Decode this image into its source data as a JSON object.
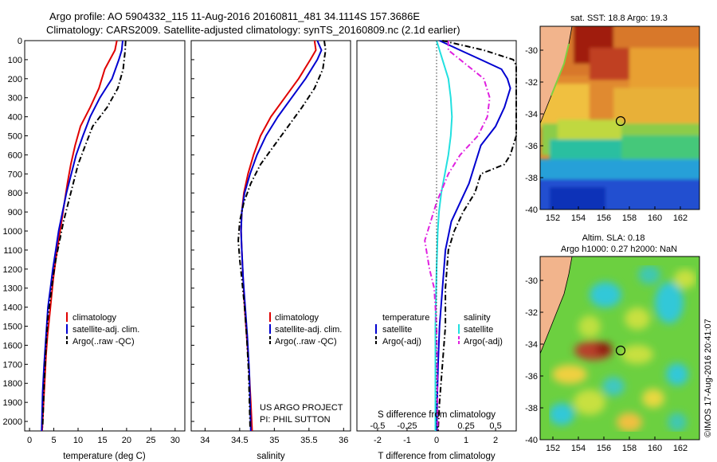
{
  "title": {
    "line1": "Argo profile: AO 5904332_115 11-Aug-2016 20160811_481 34.1114S 157.3686E",
    "line2": "Climatology: CARS2009. Satellite-adjusted climatology: synTS_20160809.nc (2.1d earlier)"
  },
  "colors": {
    "climatology": "#e00000",
    "satellite_temperature": "#0000d0",
    "argo": "#000000",
    "satellite_salinity": "#22e0e0",
    "argo_salinity_diff": "#e020e0",
    "land": "#f2b48c"
  },
  "panels": {
    "temperature": {
      "xlabel": "temperature (deg C)",
      "legend": [
        "climatology",
        "satellite-adj. clim.",
        "Argo(..raw -QC)"
      ]
    },
    "salinity": {
      "xlabel": "salinity",
      "legend": [
        "climatology",
        "satellite-adj. clim.",
        "Argo(..raw -QC)"
      ],
      "project": "US ARGO PROJECT",
      "pi": "PI: PHIL SUTTON"
    },
    "difference": {
      "xlabel_t": "T difference from climatology",
      "xlabel_s": "S difference from climatology",
      "legend_temperature_title": "temperature",
      "legend_salinity_title": "salinity",
      "legend_satellite": "satellite",
      "legend_argo": "Argo(-adj)"
    },
    "sst_map": {
      "title": "sat. SST: 18.8  Argo: 19.3"
    },
    "sla_map": {
      "title1": "Altim. SLA: 0.18",
      "title2": "Argo h1000: 0.27  h2000: NaN"
    },
    "stamp": "©IMOS 17-Aug-2016 20:41:07"
  },
  "chart_data": [
    {
      "type": "line",
      "name": "temperature",
      "xlabel": "temperature (deg C)",
      "xlim": [
        -1,
        32
      ],
      "ylim": [
        2050,
        0
      ],
      "xticks": [
        0,
        5,
        10,
        15,
        20,
        25,
        30
      ],
      "yticks": [
        0,
        100,
        200,
        300,
        400,
        500,
        600,
        700,
        800,
        900,
        1000,
        1100,
        1200,
        1300,
        1400,
        1500,
        1600,
        1700,
        1800,
        1900,
        2000
      ],
      "series": [
        {
          "name": "climatology",
          "color": "#e00000",
          "style": "solid",
          "x": [
            18.0,
            17.6,
            15.5,
            14.3,
            12.5,
            10.5,
            9.4,
            8.5,
            7.8,
            7.2,
            6.6,
            6.0,
            5.4,
            4.9,
            4.5,
            4.1,
            3.7,
            3.4,
            3.1,
            2.8,
            2.6
          ],
          "y": [
            0,
            50,
            150,
            250,
            350,
            450,
            550,
            650,
            750,
            850,
            950,
            1050,
            1150,
            1250,
            1350,
            1450,
            1550,
            1650,
            1800,
            1950,
            2050
          ]
        },
        {
          "name": "satellite-adj. clim.",
          "color": "#0000d0",
          "style": "solid",
          "x": [
            19.2,
            19.0,
            18.4,
            17.0,
            14.5,
            12.5,
            11.0,
            9.6,
            8.6,
            7.6,
            6.8,
            6.0,
            5.4,
            4.8,
            4.3,
            3.8,
            3.4,
            3.0,
            2.7,
            2.5
          ],
          "y": [
            0,
            50,
            100,
            200,
            300,
            400,
            500,
            600,
            700,
            800,
            900,
            1000,
            1100,
            1200,
            1300,
            1400,
            1550,
            1700,
            1850,
            2050
          ]
        },
        {
          "name": "Argo(..raw -QC)",
          "color": "#000000",
          "style": "dashed",
          "x": [
            19.8,
            19.7,
            19.3,
            18.2,
            16.0,
            13.0,
            11.5,
            10.0,
            9.0,
            8.0,
            7.0,
            6.2,
            5.4,
            4.8,
            4.3,
            3.8,
            3.4,
            3.0,
            2.7
          ],
          "y": [
            0,
            50,
            150,
            250,
            350,
            450,
            550,
            650,
            750,
            850,
            950,
            1050,
            1150,
            1250,
            1350,
            1450,
            1600,
            1800,
            2030
          ]
        }
      ]
    },
    {
      "type": "line",
      "name": "salinity",
      "xlabel": "salinity",
      "xlim": [
        33.8,
        36.1
      ],
      "ylim": [
        2050,
        0
      ],
      "xticks": [
        34,
        34.5,
        35,
        35.5,
        36
      ],
      "yticks": [
        0,
        100,
        200,
        300,
        400,
        500,
        600,
        700,
        800,
        900,
        1000,
        1100,
        1200,
        1300,
        1400,
        1500,
        1600,
        1700,
        1800,
        1900,
        2000
      ],
      "series": [
        {
          "name": "climatology",
          "color": "#e00000",
          "style": "solid",
          "x": [
            35.58,
            35.6,
            35.52,
            35.35,
            35.15,
            34.95,
            34.8,
            34.7,
            34.62,
            34.56,
            34.53,
            34.52,
            34.53,
            34.55,
            34.57,
            34.6,
            34.63,
            34.66,
            34.68
          ],
          "y": [
            0,
            50,
            100,
            200,
            300,
            400,
            500,
            600,
            700,
            800,
            900,
            1000,
            1100,
            1250,
            1400,
            1550,
            1700,
            1900,
            2050
          ]
        },
        {
          "name": "satellite-adj. clim.",
          "color": "#0000d0",
          "style": "solid",
          "x": [
            35.62,
            35.68,
            35.62,
            35.45,
            35.25,
            35.05,
            34.88,
            34.75,
            34.65,
            34.57,
            34.53,
            34.52,
            34.53,
            34.55,
            34.58,
            34.61,
            34.64,
            34.66
          ],
          "y": [
            0,
            50,
            100,
            200,
            300,
            400,
            500,
            600,
            700,
            800,
            900,
            1000,
            1100,
            1250,
            1400,
            1550,
            1750,
            2050
          ]
        },
        {
          "name": "Argo(..raw -QC)",
          "color": "#000000",
          "style": "dashed",
          "x": [
            35.72,
            35.74,
            35.7,
            35.58,
            35.4,
            35.2,
            35.0,
            34.8,
            34.66,
            34.56,
            34.5,
            34.48,
            34.5,
            34.53,
            34.57,
            34.6,
            34.63,
            34.65
          ],
          "y": [
            0,
            50,
            150,
            250,
            350,
            450,
            550,
            650,
            750,
            850,
            950,
            1050,
            1150,
            1250,
            1400,
            1550,
            1750,
            2030
          ]
        }
      ]
    },
    {
      "type": "line",
      "name": "difference",
      "xlabel": "T difference from climatology",
      "xlim_t": [
        -2.7,
        2.7
      ],
      "xlim_s": [
        -0.675,
        0.675
      ],
      "ylim": [
        2050,
        0
      ],
      "xticks_t": [
        -2,
        -1,
        0,
        1,
        2
      ],
      "xticks_s": [
        -0.5,
        -0.25,
        0,
        0.25,
        0.5
      ],
      "series": [
        {
          "name": "temperature satellite",
          "color": "#0000d0",
          "style": "solid",
          "axis": "t",
          "x": [
            0.1,
            0.8,
            1.5,
            2.2,
            2.4,
            2.5,
            2.3,
            2.0,
            1.5,
            1.3,
            1.1,
            0.8,
            0.5,
            0.3,
            0.2,
            0.1,
            0.05,
            0.02,
            0.0
          ],
          "y": [
            0,
            50,
            100,
            150,
            200,
            250,
            350,
            450,
            550,
            650,
            750,
            850,
            950,
            1100,
            1300,
            1500,
            1700,
            1900,
            2050
          ]
        },
        {
          "name": "temperature Argo(-adj)",
          "color": "#000000",
          "style": "dashed",
          "axis": "t",
          "x": [
            0.2,
            1.6,
            2.6,
            2.7,
            2.7,
            2.7,
            2.5,
            2.3,
            1.5,
            1.3,
            0.9,
            0.6,
            0.4,
            0.3,
            0.3,
            0.2,
            0.1,
            0.05
          ],
          "y": [
            0,
            50,
            100,
            130,
            300,
            500,
            600,
            650,
            700,
            800,
            900,
            1000,
            1100,
            1300,
            1500,
            1700,
            1900,
            2050
          ]
        },
        {
          "name": "salinity satellite",
          "color": "#22e0e0",
          "style": "solid",
          "axis": "s",
          "x": [
            0.0,
            0.05,
            0.1,
            0.12,
            0.13,
            0.12,
            0.1,
            0.07,
            0.04,
            0.02,
            0.01,
            0.0,
            -0.01,
            -0.01,
            -0.01
          ],
          "y": [
            0,
            100,
            200,
            300,
            400,
            500,
            600,
            700,
            800,
            900,
            1000,
            1200,
            1500,
            1800,
            2050
          ]
        },
        {
          "name": "salinity Argo(-adj)",
          "color": "#e020e0",
          "style": "dashed",
          "axis": "s",
          "x": [
            0.1,
            0.1,
            0.2,
            0.4,
            0.45,
            0.43,
            0.35,
            0.2,
            0.1,
            0.0,
            -0.1,
            -0.06,
            -0.02,
            0.0,
            0.01
          ],
          "y": [
            0,
            50,
            100,
            200,
            300,
            400,
            500,
            600,
            700,
            850,
            1050,
            1200,
            1300,
            1500,
            2050
          ]
        }
      ]
    },
    {
      "type": "heatmap",
      "name": "sat-sst-map",
      "title": "sat. SST: 18.8  Argo: 19.3",
      "xlim": [
        151,
        163.5
      ],
      "ylim": [
        -40,
        -28.5
      ],
      "xticks": [
        152,
        154,
        156,
        158,
        160,
        162
      ],
      "yticks": [
        -30,
        -32,
        -34,
        -36,
        -38,
        -40
      ],
      "marker": {
        "lon": 157.37,
        "lat": -34.11
      }
    },
    {
      "type": "heatmap",
      "name": "altim-sla-map",
      "title": "Altim. SLA: 0.18",
      "xlim": [
        151,
        163.5
      ],
      "ylim": [
        -40,
        -28.5
      ],
      "xticks": [
        152,
        154,
        156,
        158,
        160,
        162
      ],
      "yticks": [
        -30,
        -32,
        -34,
        -36,
        -38,
        -40
      ],
      "marker": {
        "lon": 157.37,
        "lat": -34.11
      }
    }
  ]
}
